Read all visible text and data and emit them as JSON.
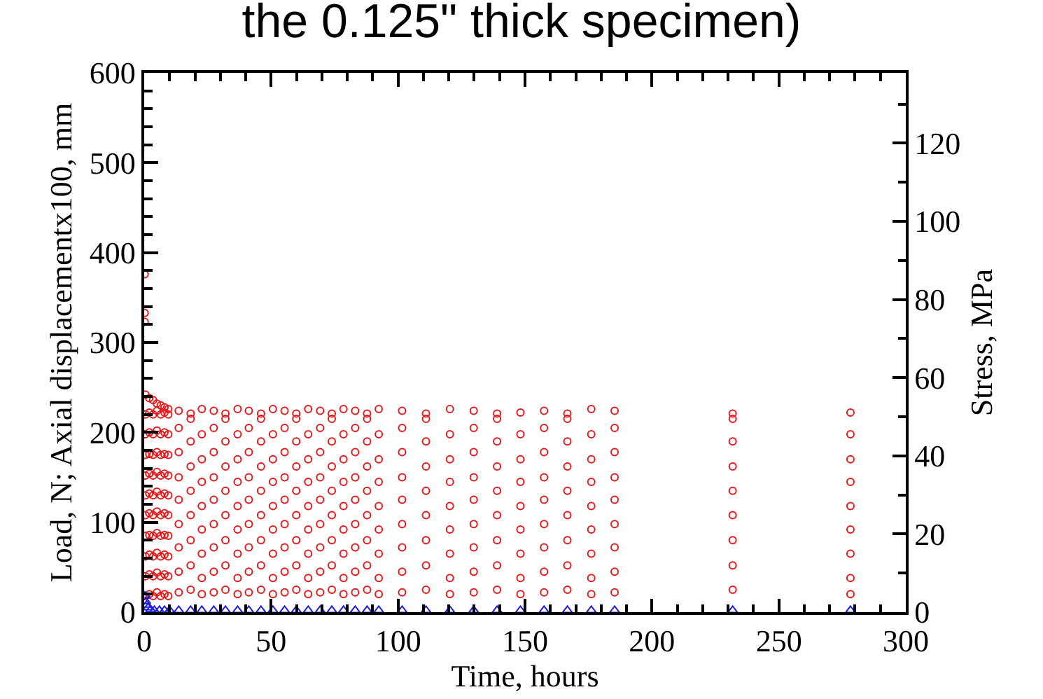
{
  "chart_data": {
    "type": "scatter",
    "title": "the 0.125\" thick specimen)",
    "xlabel": "Time, hours",
    "ylabel": "Load, N; Axial displacementx100, mm",
    "y2label": "Stress, MPa",
    "xlim": [
      0,
      300
    ],
    "xticks": [
      0,
      50,
      100,
      150,
      200,
      250,
      300
    ],
    "ylim": [
      0,
      600
    ],
    "yticks": [
      0,
      100,
      200,
      300,
      400,
      500,
      600
    ],
    "y2lim": [
      0,
      138
    ],
    "y2ticks": [
      0,
      20,
      40,
      60,
      80,
      100,
      120
    ],
    "series": [
      {
        "color": "#e31a1c",
        "marker": "circle",
        "x": [
          0.2,
          0.2,
          0.2,
          0.5,
          0.5,
          0.5,
          0.5,
          0.5,
          0.5,
          0.5,
          0.5,
          0.5,
          0.5,
          0.5,
          2,
          2,
          2,
          2,
          2,
          2,
          2,
          2,
          2,
          2,
          2,
          3.5,
          3.5,
          3.5,
          3.5,
          3.5,
          3.5,
          3.5,
          3.5,
          3.5,
          3.5,
          3.5,
          5,
          5,
          5,
          5,
          5,
          5,
          5,
          5,
          5,
          5,
          5,
          6.5,
          6.5,
          6.5,
          6.5,
          6.5,
          6.5,
          6.5,
          6.5,
          6.5,
          6.5,
          6.5,
          8,
          8,
          8,
          8,
          8,
          8,
          8,
          8,
          8,
          8,
          8,
          9.5,
          9.5,
          9.5,
          9.5,
          9.5,
          9.5,
          9.5,
          9.5,
          9.5,
          9.5,
          9.5,
          13.6,
          13.6,
          13.6,
          13.6,
          13.6,
          13.6,
          13.6,
          13.6,
          13.6,
          18.3,
          18.3,
          18.3,
          18.3,
          18.3,
          18.3,
          18.3,
          18.3,
          18.3,
          22.7,
          22.7,
          22.7,
          22.7,
          22.7,
          22.7,
          22.7,
          22.7,
          22.7,
          27.4,
          27.4,
          27.4,
          27.4,
          27.4,
          27.4,
          27.4,
          27.4,
          27.4,
          32,
          32,
          32,
          32,
          32,
          32,
          32,
          32,
          32,
          36.8,
          36.8,
          36.8,
          36.8,
          36.8,
          36.8,
          36.8,
          36.8,
          36.8,
          41.2,
          41.2,
          41.2,
          41.2,
          41.2,
          41.2,
          41.2,
          41.2,
          41.2,
          46,
          46,
          46,
          46,
          46,
          46,
          46,
          46,
          46,
          50.7,
          50.7,
          50.7,
          50.7,
          50.7,
          50.7,
          50.7,
          50.7,
          50.7,
          55.3,
          55.3,
          55.3,
          55.3,
          55.3,
          55.3,
          55.3,
          55.3,
          55.3,
          59.9,
          59.9,
          59.9,
          59.9,
          59.9,
          59.9,
          59.9,
          59.9,
          59.9,
          64.6,
          64.6,
          64.6,
          64.6,
          64.6,
          64.6,
          64.6,
          64.6,
          64.6,
          69.3,
          69.3,
          69.3,
          69.3,
          69.3,
          69.3,
          69.3,
          69.3,
          69.3,
          73.9,
          73.9,
          73.9,
          73.9,
          73.9,
          73.9,
          73.9,
          73.9,
          73.9,
          78.5,
          78.5,
          78.5,
          78.5,
          78.5,
          78.5,
          78.5,
          78.5,
          78.5,
          83.1,
          83.1,
          83.1,
          83.1,
          83.1,
          83.1,
          83.1,
          83.1,
          83.1,
          87.8,
          87.8,
          87.8,
          87.8,
          87.8,
          87.8,
          87.8,
          87.8,
          87.8,
          92.4,
          92.4,
          92.4,
          92.4,
          92.4,
          92.4,
          92.4,
          92.4,
          92.4,
          101.6,
          101.6,
          101.6,
          101.6,
          101.6,
          101.6,
          101.6,
          101.6,
          101.6,
          111,
          111,
          111,
          111,
          111,
          111,
          111,
          111,
          111,
          120.4,
          120.4,
          120.4,
          120.4,
          120.4,
          120.4,
          120.4,
          120.4,
          120.4,
          129.8,
          129.8,
          129.8,
          129.8,
          129.8,
          129.8,
          129.8,
          129.8,
          129.8,
          139,
          139,
          139,
          139,
          139,
          139,
          139,
          139,
          139,
          148.2,
          148.2,
          148.2,
          148.2,
          148.2,
          148.2,
          148.2,
          148.2,
          148.2,
          157.5,
          157.5,
          157.5,
          157.5,
          157.5,
          157.5,
          157.5,
          157.5,
          157.5,
          166.7,
          166.7,
          166.7,
          166.7,
          166.7,
          166.7,
          166.7,
          166.7,
          166.7,
          176.1,
          176.1,
          176.1,
          176.1,
          176.1,
          176.1,
          176.1,
          176.1,
          176.1,
          185.3,
          185.3,
          185.3,
          185.3,
          185.3,
          185.3,
          185.3,
          185.3,
          185.3,
          231.8,
          231.8,
          231.8,
          231.8,
          231.8,
          231.8,
          231.8,
          231.8,
          231.8,
          278.2,
          278.2,
          278.2,
          278.2,
          278.2,
          278.2,
          278.2,
          278.2,
          278.2
        ],
        "values": [
          376,
          333,
          323,
          18,
          40,
          62,
          85,
          108,
          130,
          152,
          175,
          198,
          220,
          242,
          20,
          42,
          64,
          86,
          110,
          132,
          154,
          176,
          200,
          222,
          238,
          18,
          40,
          62,
          85,
          108,
          130,
          152,
          175,
          198,
          220,
          236,
          22,
          44,
          66,
          88,
          112,
          134,
          156,
          178,
          202,
          224,
          232,
          18,
          40,
          62,
          85,
          108,
          130,
          152,
          175,
          198,
          220,
          230,
          20,
          42,
          64,
          86,
          110,
          132,
          154,
          176,
          200,
          222,
          228,
          18,
          40,
          62,
          85,
          108,
          130,
          152,
          175,
          198,
          220,
          226,
          22,
          45,
          72,
          98,
          125,
          150,
          178,
          205,
          224,
          25,
          52,
          80,
          108,
          135,
          162,
          190,
          215,
          221,
          20,
          38,
          65,
          92,
          118,
          145,
          170,
          198,
          226,
          22,
          45,
          72,
          98,
          125,
          150,
          178,
          205,
          224,
          25,
          52,
          80,
          108,
          135,
          162,
          190,
          215,
          221,
          20,
          38,
          65,
          92,
          118,
          145,
          170,
          198,
          226,
          22,
          45,
          72,
          98,
          125,
          150,
          178,
          205,
          224,
          25,
          52,
          80,
          108,
          135,
          162,
          190,
          215,
          221,
          20,
          38,
          65,
          92,
          118,
          145,
          170,
          198,
          226,
          22,
          45,
          72,
          98,
          125,
          150,
          178,
          205,
          224,
          25,
          52,
          80,
          108,
          135,
          162,
          190,
          215,
          221,
          20,
          38,
          65,
          92,
          118,
          145,
          170,
          198,
          226,
          22,
          45,
          72,
          98,
          125,
          150,
          178,
          205,
          224,
          25,
          52,
          80,
          108,
          135,
          162,
          190,
          215,
          221,
          20,
          38,
          65,
          92,
          118,
          145,
          170,
          198,
          226,
          22,
          45,
          72,
          98,
          125,
          150,
          178,
          205,
          224,
          25,
          52,
          80,
          108,
          135,
          162,
          190,
          215,
          221,
          20,
          38,
          65,
          92,
          118,
          145,
          170,
          198,
          226,
          22,
          45,
          72,
          98,
          125,
          150,
          178,
          205,
          224,
          25,
          52,
          80,
          108,
          135,
          162,
          190,
          215,
          221,
          20,
          38,
          65,
          92,
          118,
          145,
          170,
          198,
          226,
          22,
          45,
          72,
          98,
          125,
          150,
          178,
          205,
          224,
          25,
          52,
          80,
          108,
          135,
          162,
          190,
          215,
          221,
          20,
          38,
          65,
          92,
          118,
          145,
          170,
          198,
          222,
          22,
          45,
          72,
          98,
          125,
          150,
          178,
          205,
          224,
          25,
          52,
          80,
          108,
          135,
          162,
          190,
          215,
          221,
          20,
          38,
          65,
          92,
          118,
          145,
          170,
          198,
          226,
          22,
          45,
          72,
          98,
          125,
          150,
          178,
          205,
          224,
          25,
          52,
          80,
          108,
          135,
          162,
          190,
          215,
          221,
          20,
          38,
          65,
          92,
          118,
          145,
          170,
          198,
          222
        ]
      },
      {
        "color": "#1f1fd6",
        "marker": "triangle",
        "x": [
          0.3,
          0.6,
          1,
          1.5,
          2.5,
          4,
          6,
          8,
          10,
          13.6,
          18.3,
          22.7,
          27.4,
          32,
          36.8,
          41.2,
          46,
          50.7,
          55.3,
          59.9,
          64.6,
          69.3,
          73.9,
          78.5,
          83.1,
          87.8,
          92.4,
          101.6,
          111,
          120.4,
          129.8,
          139,
          148.2,
          157.5,
          166.7,
          176.1,
          185.3,
          231.8,
          278.2
        ],
        "values": [
          18,
          12,
          8,
          5,
          3,
          2,
          2,
          2,
          2,
          2,
          2,
          2,
          2,
          2,
          2,
          2,
          2,
          2,
          2,
          2,
          2,
          2,
          2,
          2,
          2,
          2,
          2,
          2,
          2,
          2,
          2,
          2,
          2,
          2,
          2,
          2,
          2,
          2,
          2
        ]
      }
    ]
  }
}
